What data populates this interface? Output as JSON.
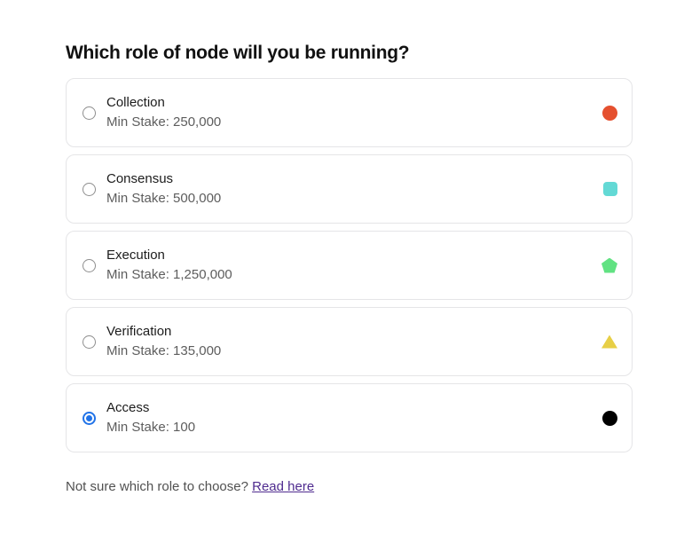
{
  "page": {
    "title": "Which role of node will you be running?"
  },
  "role_selector": {
    "options": [
      {
        "label": "Collection",
        "min_stake": "Min Stake: 250,000",
        "shape": "circle",
        "shape_color": "#e5502f",
        "selected": false
      },
      {
        "label": "Consensus",
        "min_stake": "Min Stake: 500,000",
        "shape": "rounded-square",
        "shape_color": "#63d9d5",
        "selected": false
      },
      {
        "label": "Execution",
        "min_stake": "Min Stake: 1,250,000",
        "shape": "pentagon",
        "shape_color": "#61e282",
        "selected": false
      },
      {
        "label": "Verification",
        "min_stake": "Min Stake: 135,000",
        "shape": "triangle",
        "shape_color": "#e7cf46",
        "selected": false
      },
      {
        "label": "Access",
        "min_stake": "Min Stake: 100",
        "shape": "circle",
        "shape_color": "#000000",
        "selected": true
      }
    ],
    "radio_selected_color": "#2173e8"
  },
  "footer": {
    "prompt": "Not sure which role to choose? ",
    "link_label": "Read here",
    "link_color": "#4f2b8f"
  }
}
